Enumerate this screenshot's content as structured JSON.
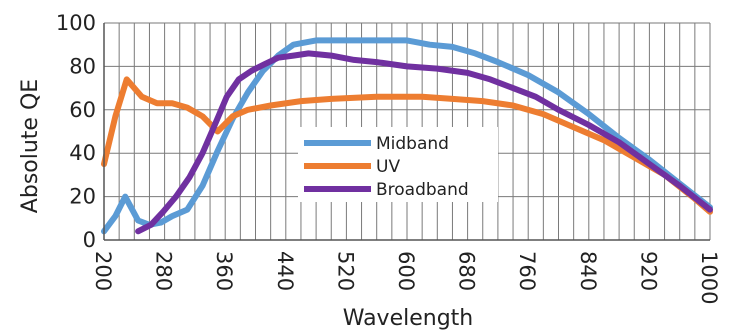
{
  "chart_data": {
    "type": "line",
    "xlabel": "Wavelength",
    "ylabel": "Absolute QE",
    "xlim": [
      200,
      1000
    ],
    "ylim": [
      0,
      100
    ],
    "x_ticks": [
      200,
      280,
      360,
      440,
      520,
      600,
      680,
      760,
      840,
      920,
      1000
    ],
    "y_ticks": [
      0,
      20,
      40,
      60,
      80,
      100
    ],
    "grid": true,
    "legend_position": "center",
    "series": [
      {
        "name": "Midband",
        "color": "#5b9bd5",
        "points": [
          [
            200,
            4
          ],
          [
            215,
            11
          ],
          [
            228,
            20
          ],
          [
            245,
            9
          ],
          [
            260,
            7
          ],
          [
            275,
            8
          ],
          [
            290,
            11
          ],
          [
            310,
            14
          ],
          [
            330,
            25
          ],
          [
            350,
            41
          ],
          [
            370,
            56
          ],
          [
            390,
            68
          ],
          [
            410,
            78
          ],
          [
            430,
            85
          ],
          [
            450,
            90
          ],
          [
            480,
            92
          ],
          [
            520,
            92
          ],
          [
            560,
            92
          ],
          [
            600,
            92
          ],
          [
            630,
            90
          ],
          [
            660,
            89
          ],
          [
            690,
            86
          ],
          [
            720,
            82
          ],
          [
            760,
            76
          ],
          [
            800,
            68
          ],
          [
            840,
            58
          ],
          [
            880,
            47
          ],
          [
            920,
            37
          ],
          [
            960,
            26
          ],
          [
            1000,
            15
          ]
        ]
      },
      {
        "name": "UV",
        "color": "#ed7d31",
        "points": [
          [
            200,
            35
          ],
          [
            215,
            57
          ],
          [
            230,
            74
          ],
          [
            250,
            66
          ],
          [
            270,
            63
          ],
          [
            290,
            63
          ],
          [
            310,
            61
          ],
          [
            330,
            57
          ],
          [
            350,
            50
          ],
          [
            370,
            57
          ],
          [
            390,
            60
          ],
          [
            420,
            62
          ],
          [
            460,
            64
          ],
          [
            500,
            65
          ],
          [
            560,
            66
          ],
          [
            620,
            66
          ],
          [
            660,
            65
          ],
          [
            700,
            64
          ],
          [
            740,
            62
          ],
          [
            780,
            58
          ],
          [
            820,
            52
          ],
          [
            860,
            46
          ],
          [
            900,
            38
          ],
          [
            940,
            30
          ],
          [
            980,
            19
          ],
          [
            1000,
            13
          ]
        ]
      },
      {
        "name": "Broadband",
        "color": "#7030a0",
        "points": [
          [
            245,
            4
          ],
          [
            262,
            7
          ],
          [
            278,
            13
          ],
          [
            295,
            20
          ],
          [
            313,
            29
          ],
          [
            330,
            40
          ],
          [
            345,
            52
          ],
          [
            362,
            66
          ],
          [
            378,
            74
          ],
          [
            395,
            78
          ],
          [
            412,
            81
          ],
          [
            430,
            84
          ],
          [
            450,
            85
          ],
          [
            470,
            86
          ],
          [
            500,
            85
          ],
          [
            530,
            83
          ],
          [
            560,
            82
          ],
          [
            600,
            80
          ],
          [
            640,
            79
          ],
          [
            680,
            77
          ],
          [
            710,
            74
          ],
          [
            740,
            70
          ],
          [
            770,
            66
          ],
          [
            800,
            60
          ],
          [
            840,
            53
          ],
          [
            880,
            45
          ],
          [
            920,
            35
          ],
          [
            960,
            25
          ],
          [
            1000,
            14
          ]
        ]
      }
    ]
  }
}
